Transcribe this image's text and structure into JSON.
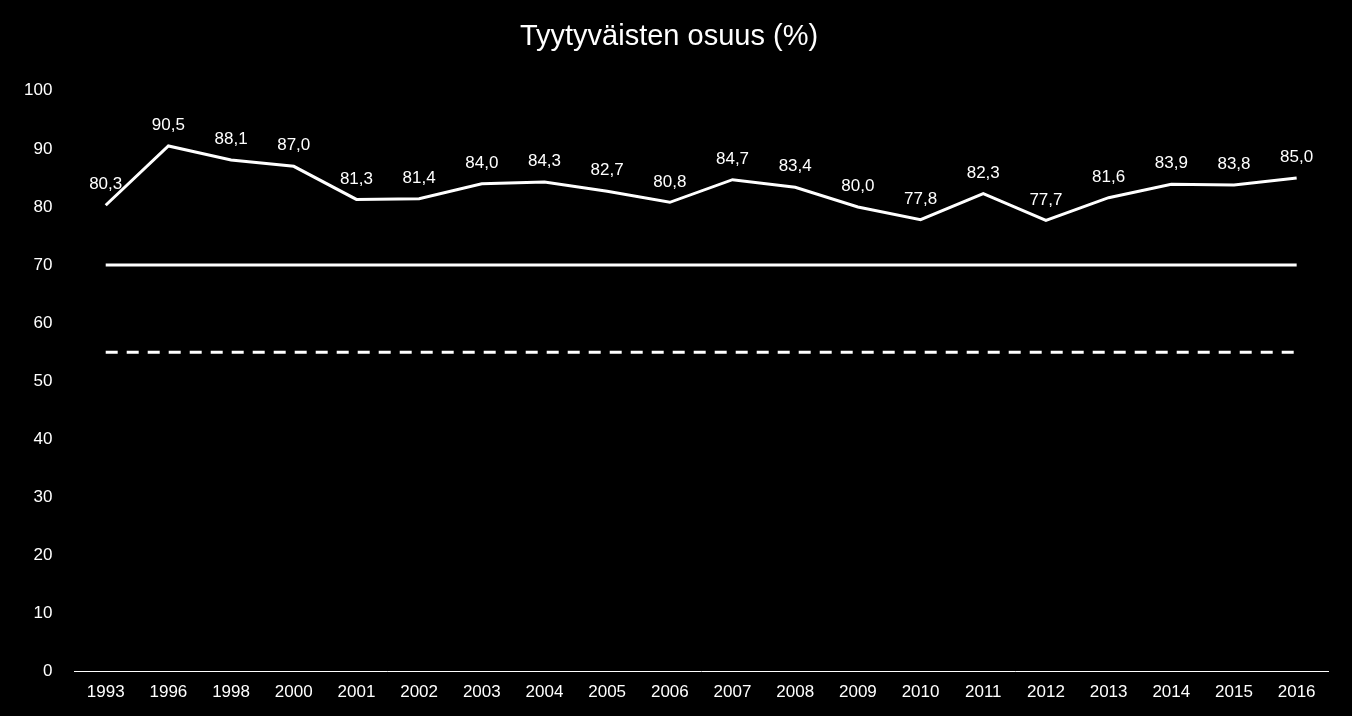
{
  "chart_data": {
    "type": "line",
    "title": "Tyytyväisten osuus (%)",
    "categories": [
      "1993",
      "1996",
      "1998",
      "2000",
      "2001",
      "2002",
      "2003",
      "2004",
      "2005",
      "2006",
      "2007",
      "2008",
      "2009",
      "2010",
      "2011",
      "2012",
      "2013",
      "2014",
      "2015",
      "2016"
    ],
    "series": [
      {
        "color": "#ffffff",
        "line_style": "solid",
        "marker": "none",
        "data_labels": true,
        "values": [
          80.3,
          90.5,
          88.1,
          87.0,
          81.3,
          81.4,
          84.0,
          84.3,
          82.7,
          80.8,
          84.7,
          83.4,
          80.0,
          77.8,
          82.3,
          77.7,
          81.6,
          83.9,
          83.8,
          85.0
        ],
        "value_labels": [
          "80,3",
          "90,5",
          "88,1",
          "87,0",
          "81,3",
          "81,4",
          "84,0",
          "84,3",
          "82,7",
          "80,8",
          "84,7",
          "83,4",
          "80,0",
          "77,8",
          "82,3",
          "77,7",
          "81,6",
          "83,9",
          "83,8",
          "85,0"
        ]
      },
      {
        "color": "#ffffff",
        "line_style": "solid",
        "marker": "none",
        "values": [
          70,
          70,
          70,
          70,
          70,
          70,
          70,
          70,
          70,
          70,
          70,
          70,
          70,
          70,
          70,
          70,
          70,
          70,
          70,
          70
        ]
      },
      {
        "color": "#ffffff",
        "line_style": "dashed",
        "marker": "none",
        "values": [
          55,
          55,
          55,
          55,
          55,
          55,
          55,
          55,
          55,
          55,
          55,
          55,
          55,
          55,
          55,
          55,
          55,
          55,
          55,
          55
        ]
      }
    ],
    "ylim": [
      0,
      100
    ],
    "yticks": [
      0,
      10,
      20,
      30,
      40,
      50,
      60,
      70,
      80,
      90,
      100
    ],
    "grid": false
  }
}
